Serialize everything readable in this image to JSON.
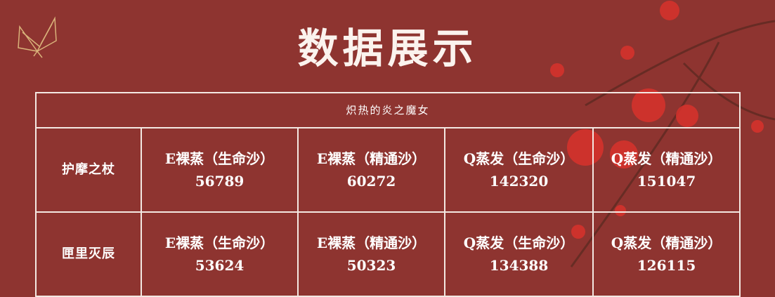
{
  "title": "数据展示",
  "table": {
    "header": "炽热的炎之魔女",
    "rows": [
      {
        "label": "护摩之杖",
        "cells": [
          {
            "name": "E裸蒸（生命沙）",
            "value": "56789"
          },
          {
            "name": "E裸蒸（精通沙）",
            "value": "60272"
          },
          {
            "name": "Q蒸发（生命沙）",
            "value": "142320"
          },
          {
            "name": "Q蒸发（精通沙）",
            "value": "151047"
          }
        ]
      },
      {
        "label": "匣里灭辰",
        "cells": [
          {
            "name": "E裸蒸（生命沙）",
            "value": "53624"
          },
          {
            "name": "E裸蒸（精通沙）",
            "value": "50323"
          },
          {
            "name": "Q蒸发（生命沙）",
            "value": "134388"
          },
          {
            "name": "Q蒸发（精通沙）",
            "value": "126115"
          }
        ]
      }
    ]
  },
  "colors": {
    "background": "#8e3430",
    "lines": "#f4e8e2",
    "blossom": "#d8322c",
    "butterfly": "#d9b27a"
  }
}
